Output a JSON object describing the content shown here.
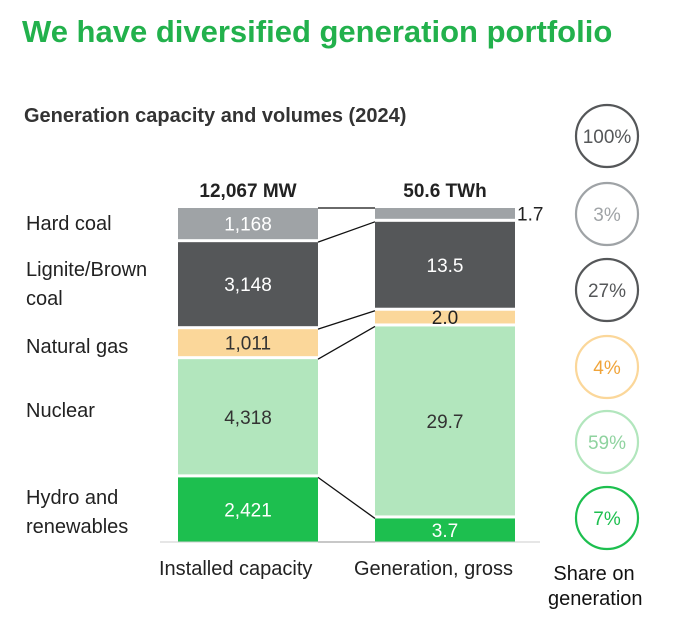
{
  "title": "We have diversified generation portfolio",
  "subtitle": "Generation capacity and volumes (2024)",
  "share_heading": "Share on generation",
  "chart_data": {
    "type": "bar",
    "stacked": true,
    "categories": [
      "Installed capacity",
      "Generation, gross"
    ],
    "totals": [
      "12,067 MW",
      "50.6 TWh"
    ],
    "series": [
      {
        "name": "Hydro and renewables",
        "values": [
          2421,
          3.7
        ],
        "labels": [
          "2,421",
          "3.7"
        ],
        "color": "#1dbf4f",
        "text_color": "#ffffff"
      },
      {
        "name": "Nuclear",
        "values": [
          4318,
          29.7
        ],
        "labels": [
          "4,318",
          "29.7"
        ],
        "color": "#b2e6bd",
        "text_color": "#333333"
      },
      {
        "name": "Natural gas",
        "values": [
          1011,
          2.0
        ],
        "labels": [
          "1,011",
          "2.0"
        ],
        "color": "#fbd79a",
        "text_color": "#333333"
      },
      {
        "name": "Lignite/Brown coal",
        "values": [
          3148,
          13.5
        ],
        "labels": [
          "3,148",
          "13.5"
        ],
        "color": "#555759",
        "text_color": "#ffffff"
      },
      {
        "name": "Hard coal",
        "values": [
          1168,
          1.7
        ],
        "labels": [
          "1,168",
          "1.7"
        ],
        "color": "#9fa3a6",
        "text_color": "#ffffff"
      }
    ],
    "shares": [
      {
        "label": "100%",
        "color": "#555759"
      },
      {
        "label": "3%",
        "color": "#9fa3a6"
      },
      {
        "label": "27%",
        "color": "#555759"
      },
      {
        "label": "4%",
        "color": "#fbd79a",
        "text_color": "#f0a43a"
      },
      {
        "label": "59%",
        "color": "#b2e6bd",
        "text_color": "#8fd39f"
      },
      {
        "label": "7%",
        "color": "#1dbf4f",
        "text_color": "#1dbf4f"
      }
    ],
    "category_labels": [
      "Hard coal",
      "Lignite/Brown coal",
      "Natural gas",
      "Nuclear",
      "Hydro and renewables"
    ]
  }
}
